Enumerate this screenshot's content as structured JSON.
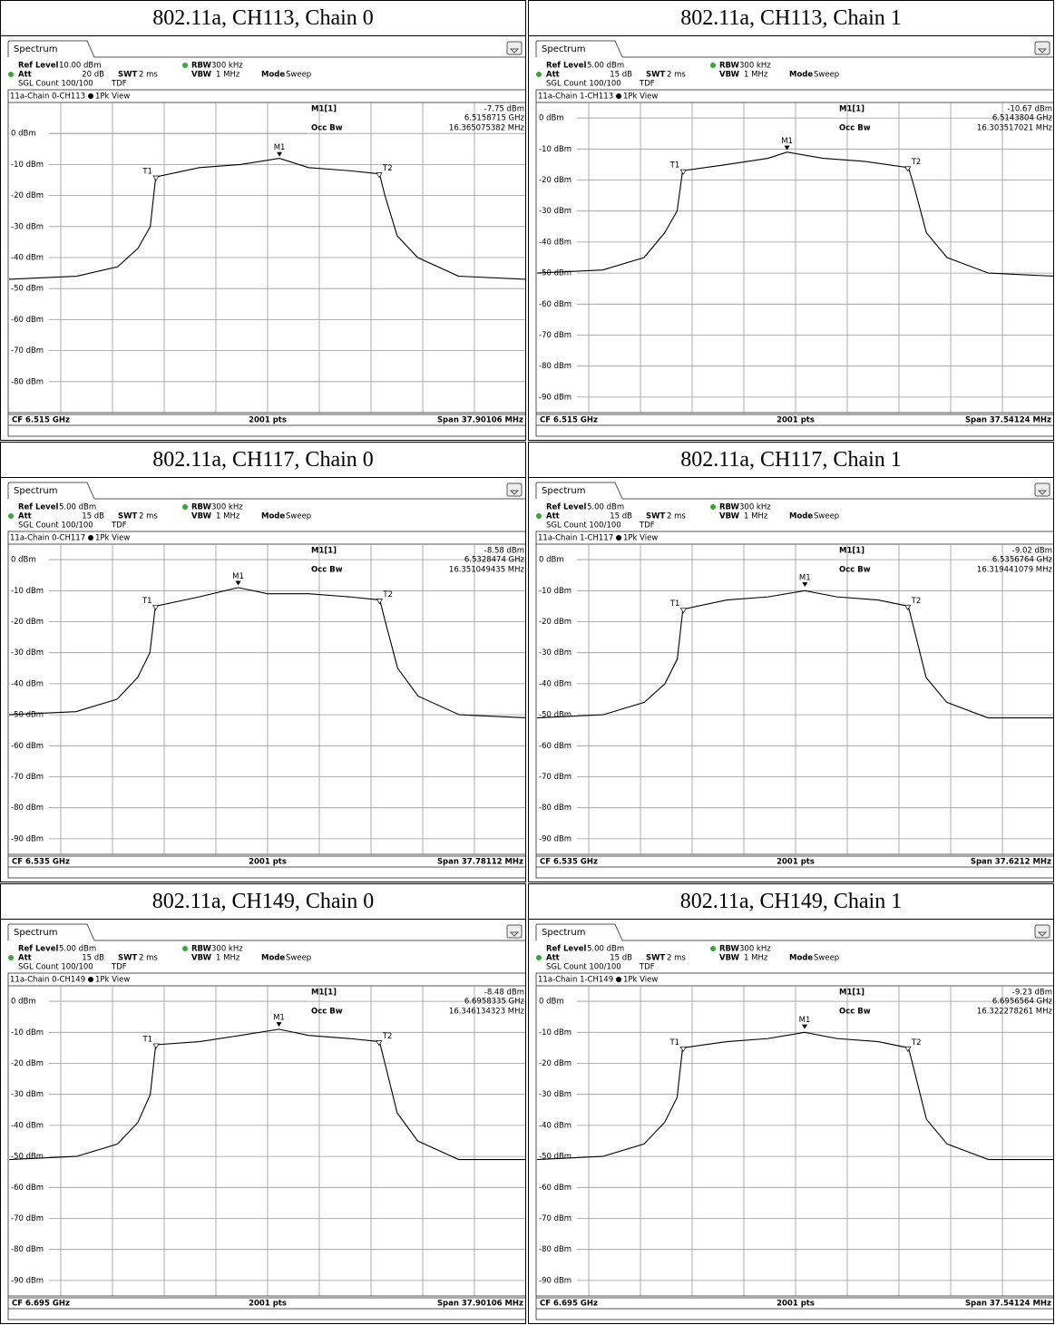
{
  "panels": [
    {
      "heading": "802.11a, CH113, Chain 0",
      "tab": "Spectrum",
      "ref_level_label": "Ref Level",
      "ref_level": "10.00 dBm",
      "att_label": "Att",
      "att": "20 dB",
      "swt_label": "SWT",
      "swt": "2 ms",
      "rbw_label": "RBW",
      "rbw": "300 kHz",
      "vbw_label": "VBW",
      "vbw": "1 MHz",
      "mode_label": "Mode",
      "mode": "Sweep",
      "count": "SGL Count 100/100",
      "tdf": "TDF",
      "trace_title": "11a-Chain 0-CH113",
      "view": "1Pk View",
      "marker_name": "M1[1]",
      "marker_level": "-7.75 dBm",
      "marker_freq": "6.5158715 GHz",
      "occ_bw_label": "Occ Bw",
      "occ_bw": "16.365075382 MHz",
      "center": "CF 6.515 GHz",
      "points": "2001 pts",
      "span": "Span 37.90106 MHz",
      "m1_label": "M1",
      "t1_label": "T1",
      "t2_label": "T2",
      "ylim": [
        -90,
        10
      ],
      "yticks": [
        {
          "value": 0,
          "label": "0 dBm"
        },
        {
          "value": -10,
          "label": "-10 dBm"
        },
        {
          "value": -20,
          "label": "-20 dBm"
        },
        {
          "value": -30,
          "label": "-30 dBm"
        },
        {
          "value": -40,
          "label": "-40 dBm"
        },
        {
          "value": -50,
          "label": "-50 dBm"
        },
        {
          "value": -60,
          "label": "-60 dBm"
        },
        {
          "value": -70,
          "label": "-70 dBm"
        },
        {
          "value": -80,
          "label": "-80 dBm"
        }
      ],
      "xlim": [
        -18.95,
        18.95
      ],
      "m1": [
        0.87,
        -7.75
      ],
      "t_x": [
        -8.18,
        8.18
      ],
      "trace": {
        "x": [
          -18.95,
          -14,
          -11,
          -9.5,
          -8.6,
          -8.2,
          -5,
          -2,
          0.87,
          3,
          6,
          8.2,
          8.6,
          9.5,
          11,
          14,
          18.95
        ],
        "y": [
          -47,
          -46,
          -43,
          -37,
          -30,
          -14,
          -11,
          -10,
          -8,
          -11,
          -12,
          -13,
          -20,
          -33,
          -40,
          -46,
          -47
        ]
      }
    },
    {
      "heading": "802.11a, CH113, Chain 1",
      "tab": "Spectrum",
      "ref_level_label": "Ref Level",
      "ref_level": "5.00 dBm",
      "att_label": "Att",
      "att": "15 dB",
      "swt_label": "SWT",
      "swt": "2 ms",
      "rbw_label": "RBW",
      "rbw": "300 kHz",
      "vbw_label": "VBW",
      "vbw": "1 MHz",
      "mode_label": "Mode",
      "mode": "Sweep",
      "count": "SGL Count 100/100",
      "tdf": "TDF",
      "trace_title": "11a-Chain 1-CH113",
      "view": "1Pk View",
      "marker_name": "M1[1]",
      "marker_level": "-10.67 dBm",
      "marker_freq": "6.5143804 GHz",
      "occ_bw_label": "Occ Bw",
      "occ_bw": "16.303517021 MHz",
      "center": "CF 6.515 GHz",
      "points": "2001 pts",
      "span": "Span 37.54124 MHz",
      "m1_label": "M1",
      "t1_label": "T1",
      "t2_label": "T2",
      "ylim": [
        -95,
        5
      ],
      "yticks": [
        {
          "value": 0,
          "label": "0 dBm"
        },
        {
          "value": -10,
          "label": "-10 dBm"
        },
        {
          "value": -20,
          "label": "-20 dBm"
        },
        {
          "value": -30,
          "label": "-30 dBm"
        },
        {
          "value": -40,
          "label": "-40 dBm"
        },
        {
          "value": -50,
          "label": "-50 dBm"
        },
        {
          "value": -60,
          "label": "-60 dBm"
        },
        {
          "value": -70,
          "label": "-70 dBm"
        },
        {
          "value": -80,
          "label": "-80 dBm"
        },
        {
          "value": -90,
          "label": "-90 dBm"
        }
      ],
      "xlim": [
        -18.77,
        18.77
      ],
      "m1": [
        -0.62,
        -10.67
      ],
      "t_x": [
        -8.15,
        8.15
      ],
      "trace": {
        "x": [
          -18.77,
          -14,
          -11,
          -9.5,
          -8.6,
          -8.2,
          -5,
          -2,
          -0.62,
          2,
          5,
          8.2,
          8.6,
          9.5,
          11,
          14,
          18.77
        ],
        "y": [
          -50,
          -49,
          -45,
          -37,
          -30,
          -17,
          -15,
          -13,
          -11,
          -13,
          -14,
          -16,
          -22,
          -37,
          -45,
          -50,
          -51
        ]
      }
    },
    {
      "heading": "802.11a, CH117, Chain 0",
      "tab": "Spectrum",
      "ref_level_label": "Ref Level",
      "ref_level": "5.00 dBm",
      "att_label": "Att",
      "att": "15 dB",
      "swt_label": "SWT",
      "swt": "2 ms",
      "rbw_label": "RBW",
      "rbw": "300 kHz",
      "vbw_label": "VBW",
      "vbw": "1 MHz",
      "mode_label": "Mode",
      "mode": "Sweep",
      "count": "SGL Count 100/100",
      "tdf": "TDF",
      "trace_title": "11a-Chain 0-CH117",
      "view": "1Pk View",
      "marker_name": "M1[1]",
      "marker_level": "-8.58 dBm",
      "marker_freq": "6.5328474 GHz",
      "occ_bw_label": "Occ Bw",
      "occ_bw": "16.351049435 MHz",
      "center": "CF 6.535 GHz",
      "points": "2001 pts",
      "span": "Span 37.78112 MHz",
      "m1_label": "M1",
      "t1_label": "T1",
      "t2_label": "T2",
      "ylim": [
        -95,
        5
      ],
      "yticks": [
        {
          "value": 0,
          "label": "0 dBm"
        },
        {
          "value": -10,
          "label": "-10 dBm"
        },
        {
          "value": -20,
          "label": "-20 dBm"
        },
        {
          "value": -30,
          "label": "-30 dBm"
        },
        {
          "value": -40,
          "label": "-40 dBm"
        },
        {
          "value": -50,
          "label": "-50 dBm"
        },
        {
          "value": -60,
          "label": "-60 dBm"
        },
        {
          "value": -70,
          "label": "-70 dBm"
        },
        {
          "value": -80,
          "label": "-80 dBm"
        },
        {
          "value": -90,
          "label": "-90 dBm"
        }
      ],
      "xlim": [
        -18.89,
        18.89
      ],
      "m1": [
        -2.15,
        -8.58
      ],
      "t_x": [
        -8.18,
        8.18
      ],
      "trace": {
        "x": [
          -18.89,
          -14,
          -11,
          -9.5,
          -8.6,
          -8.2,
          -5,
          -2.15,
          0,
          3,
          6,
          8.2,
          8.6,
          9.5,
          11,
          14,
          18.89
        ],
        "y": [
          -50,
          -49,
          -45,
          -38,
          -30,
          -15,
          -12,
          -9,
          -11,
          -11,
          -12,
          -13,
          -20,
          -35,
          -44,
          -50,
          -51
        ]
      }
    },
    {
      "heading": "802.11a, CH117, Chain 1",
      "tab": "Spectrum",
      "ref_level_label": "Ref Level",
      "ref_level": "5.00 dBm",
      "att_label": "Att",
      "att": "15 dB",
      "swt_label": "SWT",
      "swt": "2 ms",
      "rbw_label": "RBW",
      "rbw": "300 kHz",
      "vbw_label": "VBW",
      "vbw": "1 MHz",
      "mode_label": "Mode",
      "mode": "Sweep",
      "count": "SGL Count 100/100",
      "tdf": "TDF",
      "trace_title": "11a-Chain 1-CH117",
      "view": "1Pk View",
      "marker_name": "M1[1]",
      "marker_level": "-9.02 dBm",
      "marker_freq": "6.5356764 GHz",
      "occ_bw_label": "Occ Bw",
      "occ_bw": "16.319441079 MHz",
      "center": "CF 6.535 GHz",
      "points": "2001 pts",
      "span": "Span 37.6212 MHz",
      "m1_label": "M1",
      "t1_label": "T1",
      "t2_label": "T2",
      "ylim": [
        -95,
        5
      ],
      "yticks": [
        {
          "value": 0,
          "label": "0 dBm"
        },
        {
          "value": -10,
          "label": "-10 dBm"
        },
        {
          "value": -20,
          "label": "-20 dBm"
        },
        {
          "value": -30,
          "label": "-30 dBm"
        },
        {
          "value": -40,
          "label": "-40 dBm"
        },
        {
          "value": -50,
          "label": "-50 dBm"
        },
        {
          "value": -60,
          "label": "-60 dBm"
        },
        {
          "value": -70,
          "label": "-70 dBm"
        },
        {
          "value": -80,
          "label": "-80 dBm"
        },
        {
          "value": -90,
          "label": "-90 dBm"
        }
      ],
      "xlim": [
        -18.81,
        18.81
      ],
      "m1": [
        0.68,
        -9.02
      ],
      "t_x": [
        -8.16,
        8.16
      ],
      "trace": {
        "x": [
          -18.81,
          -14,
          -11,
          -9.5,
          -8.6,
          -8.2,
          -5,
          -2,
          0.68,
          3,
          6,
          8.2,
          8.6,
          9.5,
          11,
          14,
          18.81
        ],
        "y": [
          -51,
          -50,
          -46,
          -40,
          -32,
          -16,
          -13,
          -12,
          -10,
          -12,
          -13,
          -15,
          -22,
          -38,
          -46,
          -51,
          -51
        ]
      }
    },
    {
      "heading": "802.11a, CH149, Chain 0",
      "tab": "Spectrum",
      "ref_level_label": "Ref Level",
      "ref_level": "5.00 dBm",
      "att_label": "Att",
      "att": "15 dB",
      "swt_label": "SWT",
      "swt": "2 ms",
      "rbw_label": "RBW",
      "rbw": "300 kHz",
      "vbw_label": "VBW",
      "vbw": "1 MHz",
      "mode_label": "Mode",
      "mode": "Sweep",
      "count": "SGL Count 100/100",
      "tdf": "TDF",
      "trace_title": "11a-Chain 0-CH149",
      "view": "1Pk View",
      "marker_name": "M1[1]",
      "marker_level": "-8.48 dBm",
      "marker_freq": "6.6958335 GHz",
      "occ_bw_label": "Occ Bw",
      "occ_bw": "16.346134323 MHz",
      "center": "CF 6.695 GHz",
      "points": "2001 pts",
      "span": "Span 37.90106 MHz",
      "m1_label": "M1",
      "t1_label": "T1",
      "t2_label": "T2",
      "ylim": [
        -95,
        5
      ],
      "yticks": [
        {
          "value": 0,
          "label": "0 dBm"
        },
        {
          "value": -10,
          "label": "-10 dBm"
        },
        {
          "value": -20,
          "label": "-20 dBm"
        },
        {
          "value": -30,
          "label": "-30 dBm"
        },
        {
          "value": -40,
          "label": "-40 dBm"
        },
        {
          "value": -50,
          "label": "-50 dBm"
        },
        {
          "value": -60,
          "label": "-60 dBm"
        },
        {
          "value": -70,
          "label": "-70 dBm"
        },
        {
          "value": -80,
          "label": "-80 dBm"
        },
        {
          "value": -90,
          "label": "-90 dBm"
        }
      ],
      "xlim": [
        -18.95,
        18.95
      ],
      "m1": [
        0.83,
        -8.48
      ],
      "t_x": [
        -8.17,
        8.17
      ],
      "trace": {
        "x": [
          -18.95,
          -14,
          -11,
          -9.5,
          -8.6,
          -8.2,
          -5,
          -2,
          0.83,
          3,
          6,
          8.2,
          8.6,
          9.5,
          11,
          14,
          18.95
        ],
        "y": [
          -51,
          -50,
          -46,
          -39,
          -30,
          -14,
          -13,
          -11,
          -9,
          -11,
          -12,
          -13,
          -20,
          -36,
          -45,
          -51,
          -51
        ]
      }
    },
    {
      "heading": "802.11a, CH149, Chain 1",
      "tab": "Spectrum",
      "ref_level_label": "Ref Level",
      "ref_level": "5.00 dBm",
      "att_label": "Att",
      "att": "15 dB",
      "swt_label": "SWT",
      "swt": "2 ms",
      "rbw_label": "RBW",
      "rbw": "300 kHz",
      "vbw_label": "VBW",
      "vbw": "1 MHz",
      "mode_label": "Mode",
      "mode": "Sweep",
      "count": "SGL Count 100/100",
      "tdf": "TDF",
      "trace_title": "11a-Chain 1-CH149",
      "view": "1Pk View",
      "marker_name": "M1[1]",
      "marker_level": "-9.23 dBm",
      "marker_freq": "6.6956564 GHz",
      "occ_bw_label": "Occ Bw",
      "occ_bw": "16.322278261 MHz",
      "center": "CF 6.695 GHz",
      "points": "2001 pts",
      "span": "Span 37.54124 MHz",
      "m1_label": "M1",
      "t1_label": "T1",
      "t2_label": "T2",
      "ylim": [
        -95,
        5
      ],
      "yticks": [
        {
          "value": 0,
          "label": "0 dBm"
        },
        {
          "value": -10,
          "label": "-10 dBm"
        },
        {
          "value": -20,
          "label": "-20 dBm"
        },
        {
          "value": -30,
          "label": "-30 dBm"
        },
        {
          "value": -40,
          "label": "-40 dBm"
        },
        {
          "value": -50,
          "label": "-50 dBm"
        },
        {
          "value": -60,
          "label": "-60 dBm"
        },
        {
          "value": -70,
          "label": "-70 dBm"
        },
        {
          "value": -80,
          "label": "-80 dBm"
        },
        {
          "value": -90,
          "label": "-90 dBm"
        }
      ],
      "xlim": [
        -18.77,
        18.77
      ],
      "m1": [
        0.66,
        -9.23
      ],
      "t_x": [
        -8.16,
        8.16
      ],
      "trace": {
        "x": [
          -18.77,
          -14,
          -11,
          -9.5,
          -8.6,
          -8.2,
          -5,
          -2,
          0.66,
          3,
          6,
          8.2,
          8.6,
          9.5,
          11,
          14,
          18.77
        ],
        "y": [
          -51,
          -50,
          -46,
          -39,
          -31,
          -15,
          -13,
          -12,
          -10,
          -12,
          -13,
          -15,
          -22,
          -38,
          -46,
          -51,
          -51
        ]
      }
    }
  ]
}
